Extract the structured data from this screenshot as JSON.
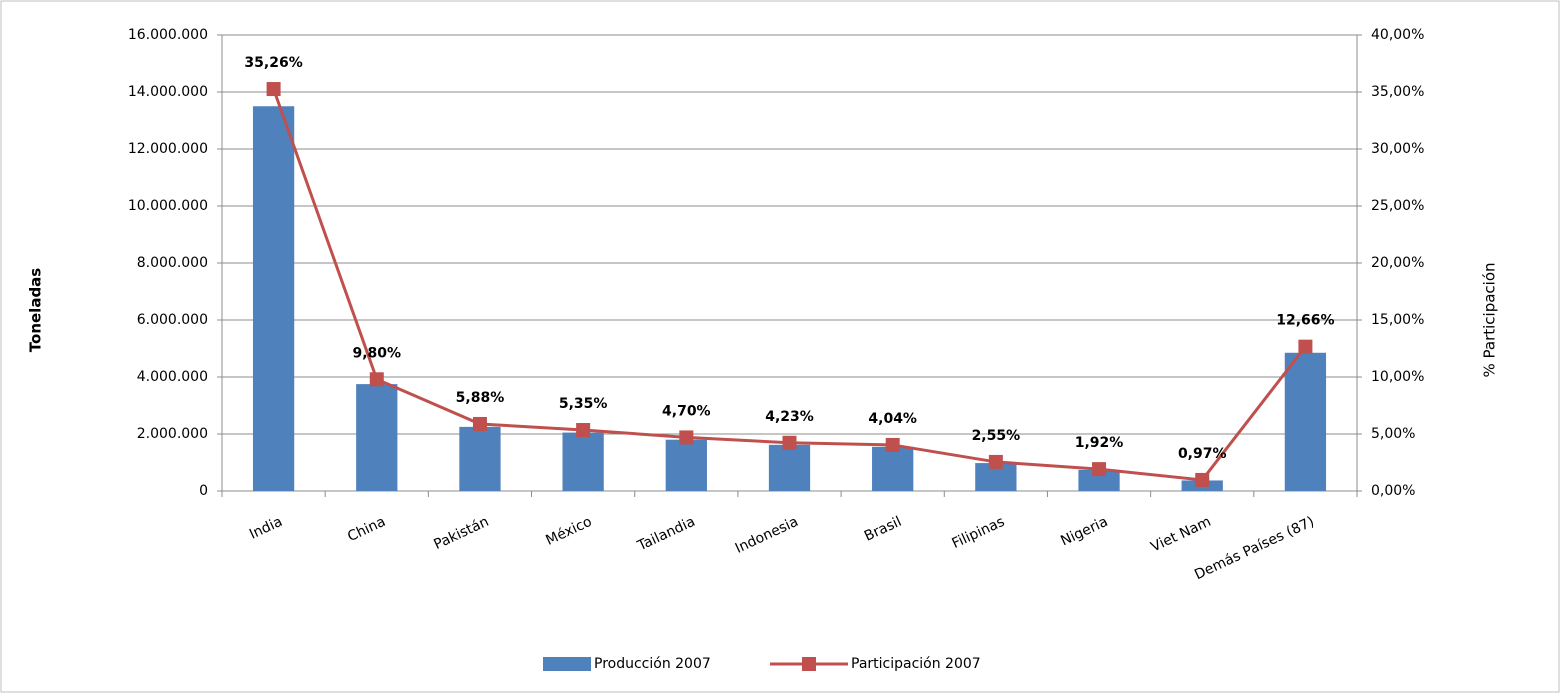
{
  "chart_data": {
    "type": "bar",
    "categories": [
      "India",
      "China",
      "Pakistán",
      "México",
      "Tailandia",
      "Indonesia",
      "Brasil",
      "Filipinas",
      "Nigeria",
      "Viet Nam",
      "Demás Países (87)"
    ],
    "series": [
      {
        "name": "Producción 2007",
        "color": "#4f81bd",
        "type": "bar",
        "values": [
          13500000,
          3750000,
          2250000,
          2050000,
          1800000,
          1620000,
          1550000,
          980000,
          740000,
          370000,
          4850000
        ]
      },
      {
        "name": "Participación 2007",
        "color": "#c0504d",
        "type": "line",
        "axis": "y2",
        "values": [
          35.26,
          9.8,
          5.88,
          5.35,
          4.7,
          4.23,
          4.04,
          2.55,
          1.92,
          0.97,
          12.66
        ],
        "value_labels": [
          "35,26%",
          "9,80%",
          "5,88%",
          "5,35%",
          "4,70%",
          "4,23%",
          "4,04%",
          "2,55%",
          "1,92%",
          "0,97%",
          "12,66%"
        ]
      }
    ],
    "ylabel": "Toneladas",
    "y2label": "% Participación",
    "ylim": [
      0,
      16000000
    ],
    "yticks": [
      {
        "value": 0,
        "label": "0"
      },
      {
        "value": 2000000,
        "label": "2.000.000"
      },
      {
        "value": 4000000,
        "label": "4.000.000"
      },
      {
        "value": 6000000,
        "label": "6.000.000"
      },
      {
        "value": 8000000,
        "label": "8.000.000"
      },
      {
        "value": 10000000,
        "label": "10.000.000"
      },
      {
        "value": 12000000,
        "label": "12.000.000"
      },
      {
        "value": 14000000,
        "label": "14.000.000"
      },
      {
        "value": 16000000,
        "label": "16.000.000"
      }
    ],
    "y2lim": [
      0,
      40
    ],
    "y2ticks": [
      {
        "value": 0,
        "label": "0,00%"
      },
      {
        "value": 5,
        "label": "5,00%"
      },
      {
        "value": 10,
        "label": "10,00%"
      },
      {
        "value": 15,
        "label": "15,00%"
      },
      {
        "value": 20,
        "label": "20,00%"
      },
      {
        "value": 25,
        "label": "25,00%"
      },
      {
        "value": 30,
        "label": "30,00%"
      },
      {
        "value": 35,
        "label": "35,00%"
      },
      {
        "value": 40,
        "label": "40,00%"
      }
    ],
    "grid": true,
    "legend": "bottom"
  }
}
